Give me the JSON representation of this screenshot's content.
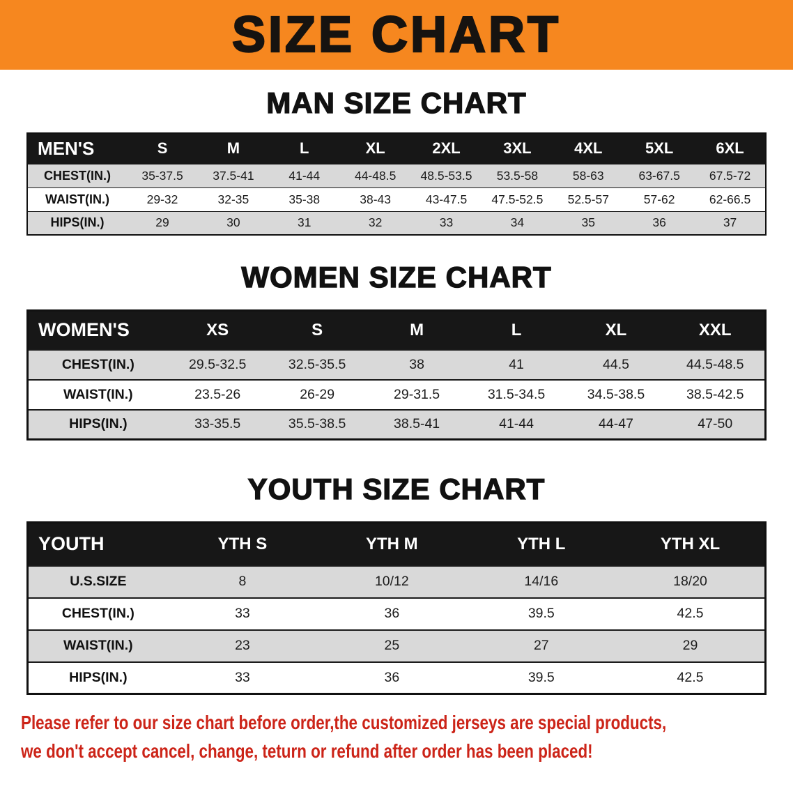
{
  "theme": {
    "banner_bg": "#f6871f",
    "banner_text": "#161310",
    "heading_text": "#111111",
    "table_header_bg": "#171717",
    "table_header_text": "#ffffff",
    "row_alt_bg": "#d9d9d9",
    "row_bg": "#ffffff",
    "table_border": "#111111",
    "disclaimer_text": "#cc2418"
  },
  "banner": {
    "title": "SIZE CHART"
  },
  "sections": [
    {
      "heading": "MAN SIZE CHART",
      "table": {
        "header": [
          "MEN'S",
          "S",
          "M",
          "L",
          "XL",
          "2XL",
          "3XL",
          "4XL",
          "5XL",
          "6XL"
        ],
        "rows": [
          [
            "CHEST(IN.)",
            "35-37.5",
            "37.5-41",
            "41-44",
            "44-48.5",
            "48.5-53.5",
            "53.5-58",
            "58-63",
            "63-67.5",
            "67.5-72"
          ],
          [
            "WAIST(IN.)",
            "29-32",
            "32-35",
            "35-38",
            "38-43",
            "43-47.5",
            "47.5-52.5",
            "52.5-57",
            "57-62",
            "62-66.5"
          ],
          [
            "HIPS(IN.)",
            "29",
            "30",
            "31",
            "32",
            "33",
            "34",
            "35",
            "36",
            "37"
          ]
        ]
      }
    },
    {
      "heading": "WOMEN SIZE CHART",
      "table": {
        "header": [
          "WOMEN'S",
          "XS",
          "S",
          "M",
          "L",
          "XL",
          "XXL"
        ],
        "rows": [
          [
            "CHEST(IN.)",
            "29.5-32.5",
            "32.5-35.5",
            "38",
            "41",
            "44.5",
            "44.5-48.5"
          ],
          [
            "WAIST(IN.)",
            "23.5-26",
            "26-29",
            "29-31.5",
            "31.5-34.5",
            "34.5-38.5",
            "38.5-42.5"
          ],
          [
            "HIPS(IN.)",
            "33-35.5",
            "35.5-38.5",
            "38.5-41",
            "41-44",
            "44-47",
            "47-50"
          ]
        ]
      }
    },
    {
      "heading": "YOUTH SIZE CHART",
      "table": {
        "header": [
          "YOUTH",
          "YTH S",
          "YTH M",
          "YTH L",
          "YTH XL"
        ],
        "rows": [
          [
            "U.S.SIZE",
            "8",
            "10/12",
            "14/16",
            "18/20"
          ],
          [
            "CHEST(IN.)",
            "33",
            "36",
            "39.5",
            "42.5"
          ],
          [
            "WAIST(IN.)",
            "23",
            "25",
            "27",
            "29"
          ],
          [
            "HIPS(IN.)",
            "33",
            "36",
            "39.5",
            "42.5"
          ]
        ]
      }
    }
  ],
  "disclaimer": {
    "line1": "Please refer to our size chart before order,the customized jerseys are special products,",
    "line2": "we don't accept cancel, change, teturn or refund after order has been placed!"
  }
}
